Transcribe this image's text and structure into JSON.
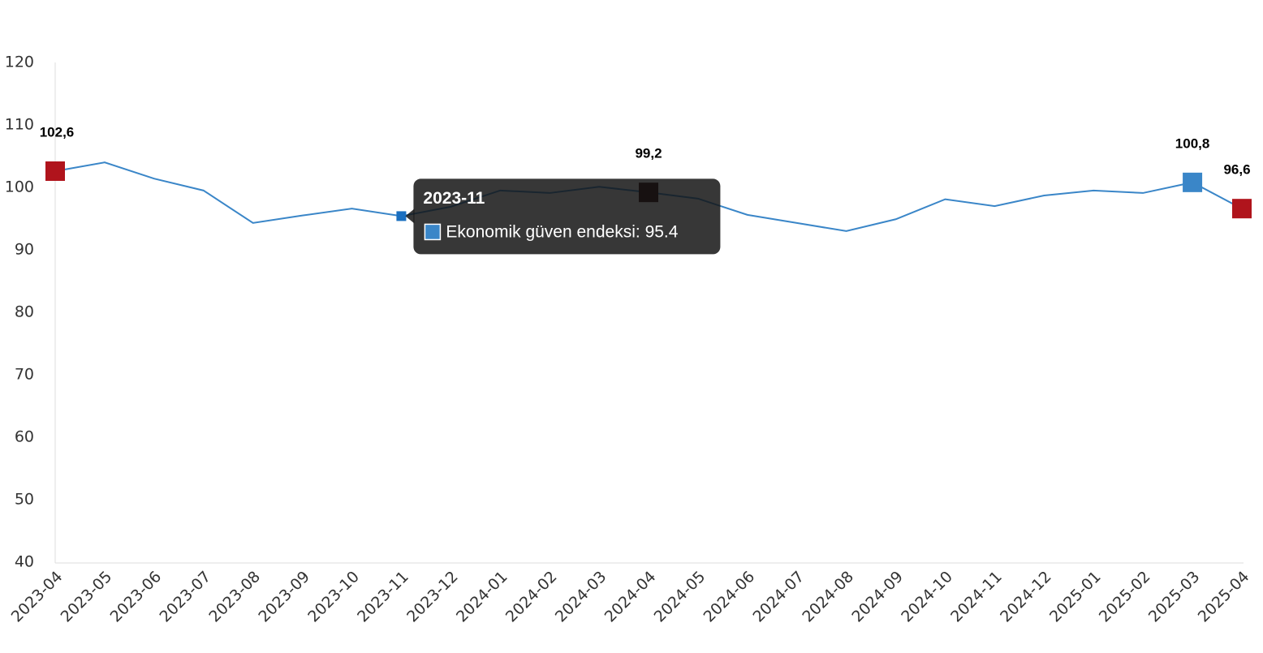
{
  "chart_data": {
    "type": "line",
    "categories": [
      "2023-04",
      "2023-05",
      "2023-06",
      "2023-07",
      "2023-08",
      "2023-09",
      "2023-10",
      "2023-11",
      "2023-12",
      "2024-01",
      "2024-02",
      "2024-03",
      "2024-04",
      "2024-05",
      "2024-06",
      "2024-07",
      "2024-08",
      "2024-09",
      "2024-10",
      "2024-11",
      "2024-12",
      "2025-01",
      "2025-02",
      "2025-03",
      "2025-04"
    ],
    "series": [
      {
        "name": "Ekonomik güven endeksi",
        "color": "#3a86c8",
        "values": [
          102.6,
          104.0,
          101.4,
          99.5,
          94.3,
          95.5,
          96.6,
          95.4,
          96.9,
          99.5,
          99.1,
          100.1,
          99.2,
          98.2,
          95.6,
          94.3,
          93.0,
          94.9,
          98.1,
          97.0,
          98.7,
          99.5,
          99.1,
          100.8,
          96.6
        ],
        "value_labels": [
          "102,6",
          null,
          null,
          null,
          null,
          null,
          null,
          null,
          null,
          null,
          null,
          null,
          "99,2",
          null,
          null,
          null,
          null,
          null,
          null,
          null,
          null,
          null,
          null,
          "100,8",
          "96,6"
        ],
        "marker_colors": [
          "#b0141c",
          null,
          null,
          null,
          null,
          null,
          null,
          "#1a6fc0",
          null,
          null,
          null,
          null,
          "#2a0000",
          null,
          null,
          null,
          null,
          null,
          null,
          null,
          null,
          null,
          null,
          "#3a86c8",
          "#b0141c"
        ]
      }
    ],
    "ylim": [
      40,
      120
    ],
    "yticks": [
      40,
      50,
      60,
      70,
      80,
      90,
      100,
      110,
      120
    ],
    "grid": false,
    "tooltip": {
      "index": 7
    }
  }
}
